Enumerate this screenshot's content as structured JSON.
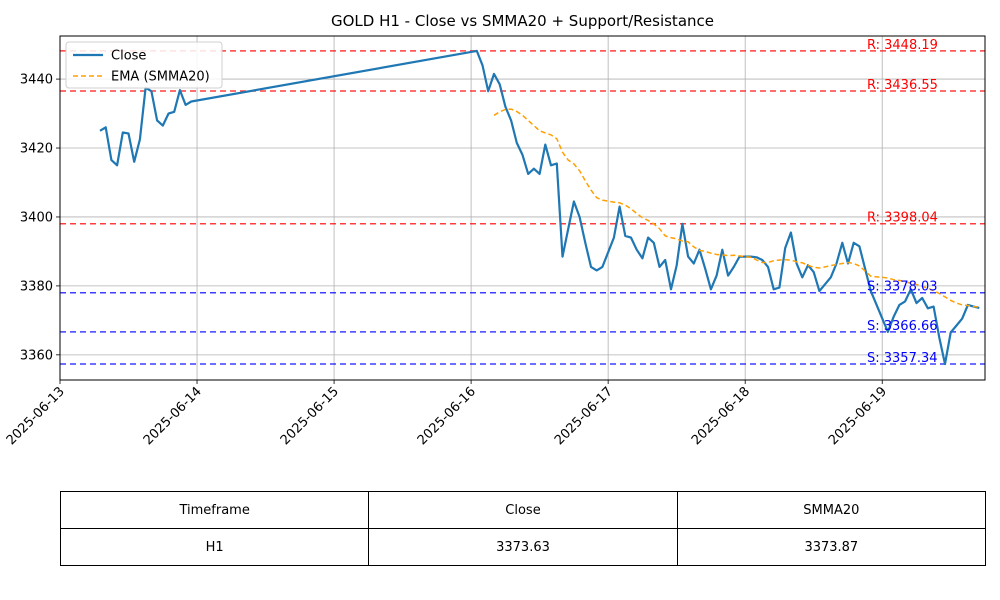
{
  "chart_data": {
    "type": "line",
    "title": "GOLD H1 - Close vs SMMA20 + Support/Resistance",
    "xlabel": "",
    "ylabel": "",
    "x_ticks": [
      "2025-06-13",
      "2025-06-14",
      "2025-06-15",
      "2025-06-16",
      "2025-06-17",
      "2025-06-18",
      "2025-06-19"
    ],
    "x_range": [
      "2025-06-13 00:00",
      "2025-06-19 18:00"
    ],
    "y_ticks": [
      3360,
      3380,
      3400,
      3420,
      3440
    ],
    "ylim": [
      3352.7,
      3452.5
    ],
    "grid": true,
    "legend_position": "top-left",
    "legend": [
      "Close",
      "EMA (SMMA20)"
    ],
    "series": [
      {
        "name": "Close",
        "color": "#1f77b4",
        "style": "solid",
        "t": [
          "06-13 07:00",
          "06-13 08:00",
          "06-13 09:00",
          "06-13 10:00",
          "06-13 11:00",
          "06-13 12:00",
          "06-13 13:00",
          "06-13 14:00",
          "06-13 15:00",
          "06-13 16:00",
          "06-13 17:00",
          "06-13 18:00",
          "06-13 19:00",
          "06-13 20:00",
          "06-13 21:00",
          "06-13 22:00",
          "06-13 23:00",
          "06-16 01:00",
          "06-16 02:00",
          "06-16 03:00",
          "06-16 04:00",
          "06-16 05:00",
          "06-16 06:00",
          "06-16 07:00",
          "06-16 08:00",
          "06-16 09:00",
          "06-16 10:00",
          "06-16 11:00",
          "06-16 12:00",
          "06-16 13:00",
          "06-16 14:00",
          "06-16 15:00",
          "06-16 16:00",
          "06-16 17:00",
          "06-16 18:00",
          "06-16 19:00",
          "06-16 20:00",
          "06-16 21:00",
          "06-16 22:00",
          "06-16 23:00",
          "06-17 01:00",
          "06-17 02:00",
          "06-17 03:00",
          "06-17 04:00",
          "06-17 05:00",
          "06-17 06:00",
          "06-17 07:00",
          "06-17 08:00",
          "06-17 09:00",
          "06-17 10:00",
          "06-17 11:00",
          "06-17 12:00",
          "06-17 13:00",
          "06-17 14:00",
          "06-17 15:00",
          "06-17 16:00",
          "06-17 17:00",
          "06-17 18:00",
          "06-17 19:00",
          "06-17 20:00",
          "06-17 21:00",
          "06-17 22:00",
          "06-17 23:00",
          "06-18 01:00",
          "06-18 02:00",
          "06-18 03:00",
          "06-18 04:00",
          "06-18 05:00",
          "06-18 06:00",
          "06-18 07:00",
          "06-18 08:00",
          "06-18 09:00",
          "06-18 10:00",
          "06-18 11:00",
          "06-18 12:00",
          "06-18 13:00",
          "06-18 14:00",
          "06-18 15:00",
          "06-18 16:00",
          "06-18 17:00",
          "06-18 18:00",
          "06-18 19:00",
          "06-18 20:00",
          "06-18 21:00",
          "06-18 22:00",
          "06-19 01:00",
          "06-19 02:00",
          "06-19 03:00",
          "06-19 04:00",
          "06-19 05:00",
          "06-19 06:00",
          "06-19 07:00",
          "06-19 08:00",
          "06-19 09:00",
          "06-19 10:00",
          "06-19 11:00",
          "06-19 12:00",
          "06-19 13:00",
          "06-19 14:00",
          "06-19 15:00",
          "06-19 16:00",
          "06-19 17:00"
        ],
        "values": [
          3425.0,
          3426.0,
          3416.5,
          3415.0,
          3424.5,
          3424.2,
          3416.0,
          3422.5,
          3437.5,
          3436.5,
          3428.0,
          3426.5,
          3430.0,
          3430.5,
          3436.8,
          3432.5,
          3433.5,
          3448.19,
          3444.0,
          3436.5,
          3441.5,
          3438.5,
          3432.0,
          3428.0,
          3421.5,
          3418.0,
          3412.5,
          3414.0,
          3412.5,
          3421.0,
          3415.0,
          3415.5,
          3388.5,
          3396.5,
          3404.5,
          3400.0,
          3392.5,
          3385.5,
          3384.5,
          3385.5,
          3394.0,
          3403.0,
          3394.5,
          3394.0,
          3390.5,
          3388.0,
          3394.0,
          3392.5,
          3385.5,
          3387.5,
          3379.0,
          3386.0,
          3398.0,
          3388.5,
          3386.5,
          3390.5,
          3385.0,
          3379.0,
          3383.0,
          3390.5,
          3383.0,
          3385.5,
          3388.5,
          3388.5,
          3388.3,
          3387.5,
          3385.5,
          3379.0,
          3379.5,
          3391.0,
          3395.5,
          3386.5,
          3382.5,
          3386.0,
          3384.0,
          3378.5,
          3380.5,
          3382.5,
          3386.5,
          3392.5,
          3386.5,
          3392.5,
          3391.5,
          3385.0,
          3378.5,
          3366.66,
          3371.0,
          3374.5,
          3375.5,
          3379.0,
          3375.0,
          3376.5,
          3373.5,
          3374.0,
          3365.0,
          3357.34,
          3366.5,
          3368.5,
          3370.5,
          3374.5,
          3374.0,
          3373.63
        ]
      },
      {
        "name": "EMA (SMMA20)",
        "color": "#ff9f00",
        "style": "dashed",
        "t": [
          "06-16 04:00",
          "06-16 05:00",
          "06-16 06:00",
          "06-16 07:00",
          "06-16 08:00",
          "06-16 09:00",
          "06-16 10:00",
          "06-16 11:00",
          "06-16 12:00",
          "06-16 13:00",
          "06-16 14:00",
          "06-16 15:00",
          "06-16 16:00",
          "06-16 17:00",
          "06-16 18:00",
          "06-16 19:00",
          "06-16 20:00",
          "06-16 21:00",
          "06-16 22:00",
          "06-16 23:00",
          "06-17 01:00",
          "06-17 02:00",
          "06-17 03:00",
          "06-17 04:00",
          "06-17 05:00",
          "06-17 06:00",
          "06-17 07:00",
          "06-17 08:00",
          "06-17 09:00",
          "06-17 10:00",
          "06-17 11:00",
          "06-17 12:00",
          "06-17 13:00",
          "06-17 14:00",
          "06-17 15:00",
          "06-17 16:00",
          "06-17 17:00",
          "06-17 18:00",
          "06-17 19:00",
          "06-17 20:00",
          "06-17 21:00",
          "06-17 22:00",
          "06-17 23:00",
          "06-18 01:00",
          "06-18 02:00",
          "06-18 03:00",
          "06-18 04:00",
          "06-18 05:00",
          "06-18 06:00",
          "06-18 07:00",
          "06-18 08:00",
          "06-18 09:00",
          "06-18 10:00",
          "06-18 11:00",
          "06-18 12:00",
          "06-18 13:00",
          "06-18 14:00",
          "06-18 15:00",
          "06-18 16:00",
          "06-18 17:00",
          "06-18 18:00",
          "06-18 19:00",
          "06-18 20:00",
          "06-18 21:00",
          "06-18 22:00",
          "06-19 01:00",
          "06-19 02:00",
          "06-19 03:00",
          "06-19 04:00",
          "06-19 05:00",
          "06-19 06:00",
          "06-19 07:00",
          "06-19 08:00",
          "06-19 09:00",
          "06-19 10:00",
          "06-19 11:00",
          "06-19 12:00",
          "06-19 13:00",
          "06-19 14:00",
          "06-19 15:00",
          "06-19 16:00",
          "06-19 17:00"
        ],
        "values": [
          3429.5,
          3430.5,
          3431.2,
          3431.3,
          3430.6,
          3429.5,
          3428.0,
          3426.5,
          3425.0,
          3424.4,
          3423.8,
          3422.7,
          3418.8,
          3416.5,
          3415.4,
          3413.4,
          3410.5,
          3407.8,
          3405.6,
          3404.9,
          3404.3,
          3404.1,
          3403.4,
          3402.4,
          3401.0,
          3399.8,
          3399.0,
          3398.0,
          3396.6,
          3394.5,
          3394.0,
          3393.6,
          3393.0,
          3392.8,
          3391.3,
          3390.3,
          3390.0,
          3389.5,
          3389.1,
          3389.0,
          3388.8,
          3388.9,
          3388.7,
          3388.3,
          3387.5,
          3386.8,
          3386.8,
          3387.3,
          3387.5,
          3387.6,
          3387.5,
          3387.0,
          3386.7,
          3386.0,
          3385.4,
          3385.2,
          3385.5,
          3385.9,
          3386.2,
          3386.5,
          3386.8,
          3386.5,
          3385.8,
          3384.3,
          3382.8,
          3382.3,
          3381.8,
          3381.6,
          3381.2,
          3380.8,
          3380.4,
          3379.9,
          3379.3,
          3378.6,
          3377.8,
          3376.8,
          3375.8,
          3375.0,
          3374.5,
          3374.3,
          3374.0,
          3373.87
        ]
      }
    ],
    "levels": [
      {
        "kind": "resistance",
        "value": 3448.19,
        "label": "R: 3448.19",
        "color": "#ff0000"
      },
      {
        "kind": "resistance",
        "value": 3436.55,
        "label": "R: 3436.55",
        "color": "#ff0000"
      },
      {
        "kind": "resistance",
        "value": 3398.04,
        "label": "R: 3398.04",
        "color": "#ff0000"
      },
      {
        "kind": "support",
        "value": 3378.03,
        "label": "S: 3378.03",
        "color": "#0000ff"
      },
      {
        "kind": "support",
        "value": 3366.66,
        "label": "S: 3366.66",
        "color": "#0000ff"
      },
      {
        "kind": "support",
        "value": 3357.34,
        "label": "S: 3357.34",
        "color": "#0000ff"
      }
    ]
  },
  "table": {
    "headers": [
      "Timeframe",
      "Close",
      "SMMA20"
    ],
    "rows": [
      [
        "H1",
        "3373.63",
        "3373.87"
      ]
    ]
  }
}
